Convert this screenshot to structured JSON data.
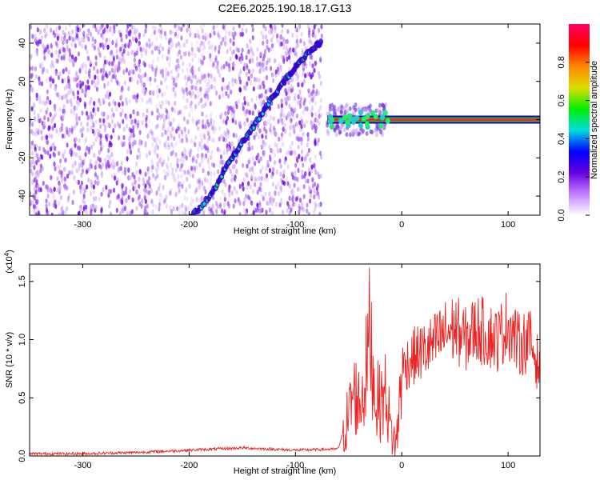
{
  "title": "C2E6.2025.190.18.17.G13",
  "chart_data": [
    {
      "type": "heatmap",
      "title": "C2E6.2025.190.18.17.G13",
      "xlabel": "Height of straight line (km)",
      "ylabel": "Frequency (Hz)",
      "xlim": [
        -350,
        130
      ],
      "ylim": [
        -50,
        50
      ],
      "xticks": [
        "-300",
        "-200",
        "-100",
        "0",
        "100"
      ],
      "yticks": [
        "-40",
        "-20",
        "0",
        "20",
        "40"
      ],
      "noise_region_x": [
        -350,
        -75
      ],
      "sweep_track": [
        {
          "x": -200,
          "y": -52
        },
        {
          "x": -180,
          "y": -40
        },
        {
          "x": -165,
          "y": -25
        },
        {
          "x": -150,
          "y": -12
        },
        {
          "x": -135,
          "y": 0
        },
        {
          "x": -120,
          "y": 13
        },
        {
          "x": -105,
          "y": 24
        },
        {
          "x": -90,
          "y": 34
        },
        {
          "x": -75,
          "y": 41
        }
      ],
      "constant_tone": {
        "x_start": -70,
        "x_end": 130,
        "y": 0
      },
      "colorbar": {
        "label": "Normalized spectral amplitude",
        "range": [
          0,
          1
        ],
        "ticks": [
          "0.0",
          "0.2",
          "0.4",
          "0.6",
          "0.8"
        ],
        "colors": [
          "#ffffff",
          "#c080ff",
          "#6600dd",
          "#0000ff",
          "#00dddd",
          "#00ee00",
          "#dddd00",
          "#ff8800",
          "#ff0000",
          "#ff0066"
        ]
      }
    },
    {
      "type": "line",
      "xlabel": "Height of straight line (km)",
      "ylabel": "SNR (10 * v/v)",
      "y_multiplier": "(x10",
      "y_multiplier_exp": "4",
      "y_multiplier_close": ")",
      "xlim": [
        -350,
        130
      ],
      "ylim": [
        0,
        1.65
      ],
      "xticks": [
        "-300",
        "-200",
        "-100",
        "0",
        "100"
      ],
      "yticks": [
        "0.0",
        "0.5",
        "1.0",
        "1.5"
      ],
      "series": [
        {
          "color": "#ee2222",
          "x": [
            -350,
            -300,
            -250,
            -200,
            -150,
            -100,
            -60,
            -50,
            -45,
            -40,
            -35,
            -30,
            -25,
            -20,
            -15,
            -10,
            -5,
            0,
            10,
            20,
            30,
            40,
            50,
            60,
            70,
            80,
            90,
            100,
            110,
            120,
            130
          ],
          "y": [
            0.02,
            0.02,
            0.03,
            0.05,
            0.07,
            0.05,
            0.06,
            0.35,
            0.55,
            0.45,
            0.6,
            1.1,
            0.5,
            0.45,
            0.55,
            0.2,
            0.1,
            0.75,
            0.85,
            0.9,
            0.95,
            1.05,
            1.1,
            1.0,
            1.1,
            1.05,
            1.0,
            1.15,
            0.95,
            1.0,
            0.75
          ]
        }
      ]
    }
  ]
}
